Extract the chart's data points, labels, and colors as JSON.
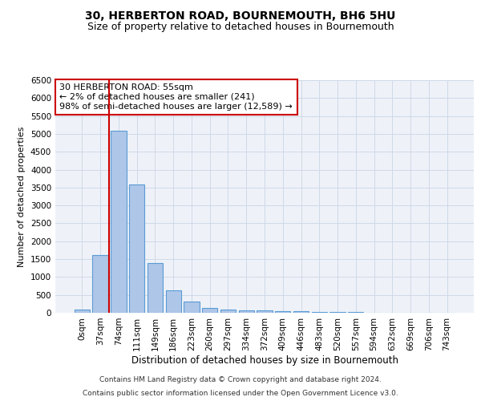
{
  "title": "30, HERBERTON ROAD, BOURNEMOUTH, BH6 5HU",
  "subtitle": "Size of property relative to detached houses in Bournemouth",
  "xlabel": "Distribution of detached houses by size in Bournemouth",
  "ylabel": "Number of detached properties",
  "categories": [
    "0sqm",
    "37sqm",
    "74sqm",
    "111sqm",
    "149sqm",
    "186sqm",
    "223sqm",
    "260sqm",
    "297sqm",
    "334sqm",
    "372sqm",
    "409sqm",
    "446sqm",
    "483sqm",
    "520sqm",
    "557sqm",
    "594sqm",
    "632sqm",
    "669sqm",
    "706sqm",
    "743sqm"
  ],
  "values": [
    100,
    1620,
    5080,
    3580,
    1400,
    620,
    310,
    145,
    100,
    70,
    60,
    55,
    50,
    30,
    20,
    15,
    10,
    8,
    5,
    5,
    5
  ],
  "bar_color": "#aec6e8",
  "bar_edge_color": "#5b9bd5",
  "vline_color": "#cc0000",
  "vline_x": 1.49,
  "annotation_text": "30 HERBERTON ROAD: 55sqm\n← 2% of detached houses are smaller (241)\n98% of semi-detached houses are larger (12,589) →",
  "annotation_box_color": "#ffffff",
  "annotation_box_edge": "#cc0000",
  "ylim": [
    0,
    6500
  ],
  "yticks": [
    0,
    500,
    1000,
    1500,
    2000,
    2500,
    3000,
    3500,
    4000,
    4500,
    5000,
    5500,
    6000,
    6500
  ],
  "grid_color": "#d0d8e8",
  "background_color": "#eef2f8",
  "footer_line1": "Contains HM Land Registry data © Crown copyright and database right 2024.",
  "footer_line2": "Contains public sector information licensed under the Open Government Licence v3.0.",
  "title_fontsize": 10,
  "subtitle_fontsize": 9,
  "xlabel_fontsize": 8.5,
  "ylabel_fontsize": 8,
  "tick_fontsize": 7.5,
  "annotation_fontsize": 8,
  "footer_fontsize": 6.5
}
